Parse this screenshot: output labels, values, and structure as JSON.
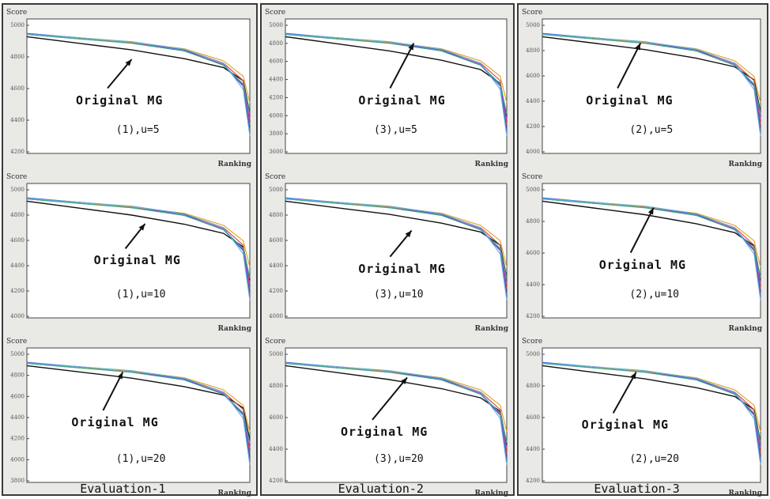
{
  "evaluations": [
    {
      "label": "Evaluation-1",
      "panels": [
        {
          "caption": "(1),u=5",
          "ylabel": "Score",
          "xlabel": "Ranking",
          "annotation": "Original MG",
          "yticks": [
            "5000",
            "4800",
            "4600",
            "4400",
            "4200"
          ]
        },
        {
          "caption": "(1),u=10",
          "ylabel": "Score",
          "xlabel": "Ranking",
          "annotation": "Original MG",
          "yticks": [
            "5000",
            "4800",
            "4600",
            "4400",
            "4200",
            "4000"
          ]
        },
        {
          "caption": "(1),u=20",
          "ylabel": "Score",
          "xlabel": "Ranking",
          "annotation": "Original MG",
          "yticks": [
            "5000",
            "4800",
            "4600",
            "4400",
            "4200",
            "4000",
            "3800"
          ]
        }
      ]
    },
    {
      "label": "Evaluation-2",
      "panels": [
        {
          "caption": "(3),u=5",
          "ylabel": "Score",
          "xlabel": "Ranking",
          "annotation": "Original MG",
          "yticks": [
            "5000",
            "4800",
            "4600",
            "4400",
            "4200",
            "4000",
            "3800",
            "3600"
          ]
        },
        {
          "caption": "(3),u=10",
          "ylabel": "Score",
          "xlabel": "Ranking",
          "annotation": "Original MG",
          "yticks": [
            "5000",
            "4800",
            "4600",
            "4400",
            "4200",
            "4000"
          ]
        },
        {
          "caption": "(3),u=20",
          "ylabel": "Score",
          "xlabel": "Ranking",
          "annotation": "Original MG",
          "yticks": [
            "5000",
            "4800",
            "4600",
            "4400",
            "4200"
          ]
        }
      ]
    },
    {
      "label": "Evaluation-3",
      "panels": [
        {
          "caption": "(2),u=5",
          "ylabel": "Score",
          "xlabel": "Ranking",
          "annotation": "Original MG",
          "yticks": [
            "5000",
            "4800",
            "4600",
            "4400",
            "4200",
            "4000"
          ]
        },
        {
          "caption": "(2),u=10",
          "ylabel": "Score",
          "xlabel": "Ranking",
          "annotation": "Original MG",
          "yticks": [
            "5000",
            "4800",
            "4600",
            "4400",
            "4200"
          ]
        },
        {
          "caption": "(2),u=20",
          "ylabel": "Score",
          "xlabel": "Ranking",
          "annotation": "Original MG",
          "yticks": [
            "5000",
            "4800",
            "4600",
            "4400",
            "4200"
          ]
        }
      ]
    }
  ],
  "chart_data": {
    "type": "line",
    "x": [
      0,
      40,
      80,
      120,
      150,
      165,
      170
    ],
    "xlim": [
      0,
      170
    ],
    "ylim": [
      4000,
      5100
    ],
    "grid": false,
    "legend": "none",
    "series_colors": [
      "#111111",
      "#d94040",
      "#3355cc",
      "#aa44cc",
      "#e0a020",
      "#33aa88",
      "#66aadd",
      "#888888"
    ],
    "series": [
      {
        "name": "Original MG",
        "values": [
          5000,
          4940,
          4880,
          4800,
          4720,
          4600,
          4300
        ]
      },
      {
        "values": [
          5020,
          4990,
          4950,
          4880,
          4760,
          4600,
          4200
        ]
      },
      {
        "values": [
          5030,
          4990,
          4950,
          4880,
          4740,
          4550,
          4150
        ]
      },
      {
        "values": [
          5020,
          4980,
          4945,
          4870,
          4750,
          4560,
          4250
        ]
      },
      {
        "values": [
          5020,
          4985,
          4950,
          4890,
          4780,
          4640,
          4400
        ]
      },
      {
        "values": [
          5020,
          4980,
          4940,
          4870,
          4740,
          4570,
          4300
        ]
      },
      {
        "values": [
          5025,
          4990,
          4955,
          4885,
          4760,
          4520,
          4100
        ]
      }
    ]
  }
}
